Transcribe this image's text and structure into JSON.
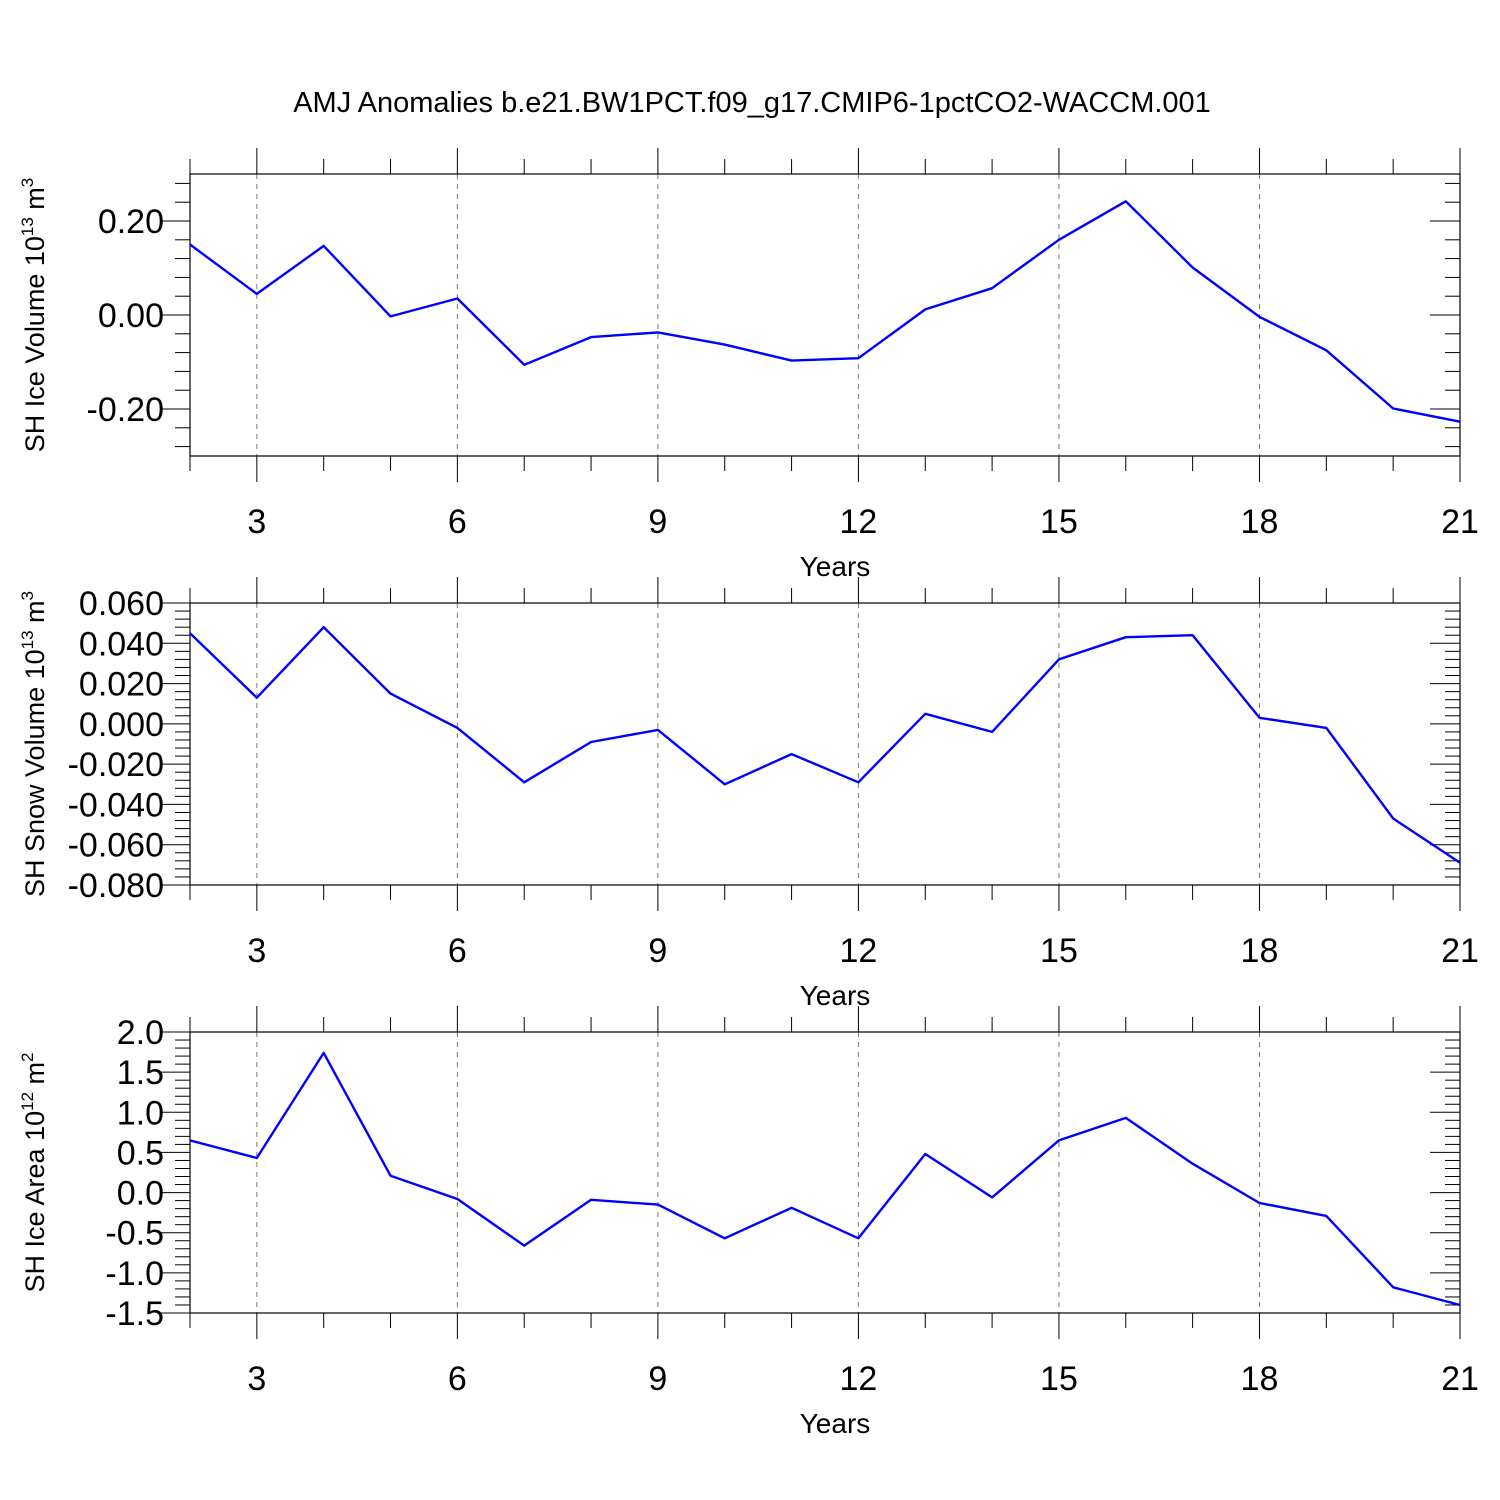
{
  "title": "AMJ Anomalies b.e21.BW1PCT.f09_g17.CMIP6-1pctCO2-WACCM.001",
  "line_color": "#0000ff",
  "chart_data": [
    {
      "type": "line",
      "xlabel": "Years",
      "ylabel": {
        "base": "SH Ice Volume 10",
        "exp": "13",
        "unit": " m",
        "unit_exp": "3"
      },
      "xlim": [
        2,
        21
      ],
      "ylim": [
        -0.3,
        0.3
      ],
      "xticks": [
        3,
        6,
        9,
        12,
        15,
        18,
        21
      ],
      "yticks": [
        -0.2,
        0.0,
        0.2
      ],
      "ytick_labels": [
        "-0.20",
        "0.00",
        "0.20"
      ],
      "series": [
        {
          "name": "SH Ice Volume",
          "x": [
            2,
            3,
            4,
            5,
            6,
            7,
            8,
            9,
            10,
            11,
            12,
            13,
            14,
            15,
            16,
            17,
            18,
            19,
            20,
            21
          ],
          "y": [
            0.15,
            0.045,
            0.147,
            -0.003,
            0.035,
            -0.106,
            -0.047,
            -0.037,
            -0.063,
            -0.097,
            -0.092,
            0.012,
            0.057,
            0.16,
            0.242,
            0.101,
            -0.004,
            -0.075,
            -0.199,
            -0.227
          ]
        }
      ]
    },
    {
      "type": "line",
      "xlabel": "Years",
      "ylabel": {
        "base": "SH Snow Volume 10",
        "exp": "13",
        "unit": " m",
        "unit_exp": "3"
      },
      "xlim": [
        2,
        21
      ],
      "ylim": [
        -0.08,
        0.06
      ],
      "xticks": [
        3,
        6,
        9,
        12,
        15,
        18,
        21
      ],
      "yticks": [
        -0.08,
        -0.06,
        -0.04,
        -0.02,
        0.0,
        0.02,
        0.04,
        0.06
      ],
      "ytick_labels": [
        "-0.080",
        "-0.060",
        "-0.040",
        "-0.020",
        "0.000",
        "0.020",
        "0.040",
        "0.060"
      ],
      "series": [
        {
          "name": "SH Snow Volume",
          "x": [
            2,
            3,
            4,
            5,
            6,
            7,
            8,
            9,
            10,
            11,
            12,
            13,
            14,
            15,
            16,
            17,
            18,
            19,
            20,
            21
          ],
          "y": [
            0.045,
            0.013,
            0.048,
            0.015,
            -0.002,
            -0.029,
            -0.009,
            -0.003,
            -0.03,
            -0.015,
            -0.029,
            0.005,
            -0.004,
            0.032,
            0.043,
            0.044,
            0.003,
            -0.002,
            -0.047,
            -0.069
          ]
        }
      ]
    },
    {
      "type": "line",
      "xlabel": "Years",
      "ylabel": {
        "base": "SH Ice Area 10",
        "exp": "12",
        "unit": " m",
        "unit_exp": "2"
      },
      "xlim": [
        2,
        21
      ],
      "ylim": [
        -1.5,
        2.0
      ],
      "xticks": [
        3,
        6,
        9,
        12,
        15,
        18,
        21
      ],
      "yticks": [
        -1.5,
        -1.0,
        -0.5,
        0.0,
        0.5,
        1.0,
        1.5,
        2.0
      ],
      "ytick_labels": [
        "-1.5",
        "-1.0",
        "-0.5",
        "0.0",
        "0.5",
        "1.0",
        "1.5",
        "2.0"
      ],
      "series": [
        {
          "name": "SH Ice Area",
          "x": [
            2,
            3,
            4,
            5,
            6,
            7,
            8,
            9,
            10,
            11,
            12,
            13,
            14,
            15,
            16,
            17,
            18,
            19,
            20,
            21
          ],
          "y": [
            0.65,
            0.43,
            1.74,
            0.21,
            -0.08,
            -0.66,
            -0.09,
            -0.15,
            -0.57,
            -0.19,
            -0.57,
            0.48,
            -0.06,
            0.65,
            0.93,
            0.36,
            -0.13,
            -0.29,
            -1.18,
            -1.4
          ]
        }
      ]
    }
  ]
}
